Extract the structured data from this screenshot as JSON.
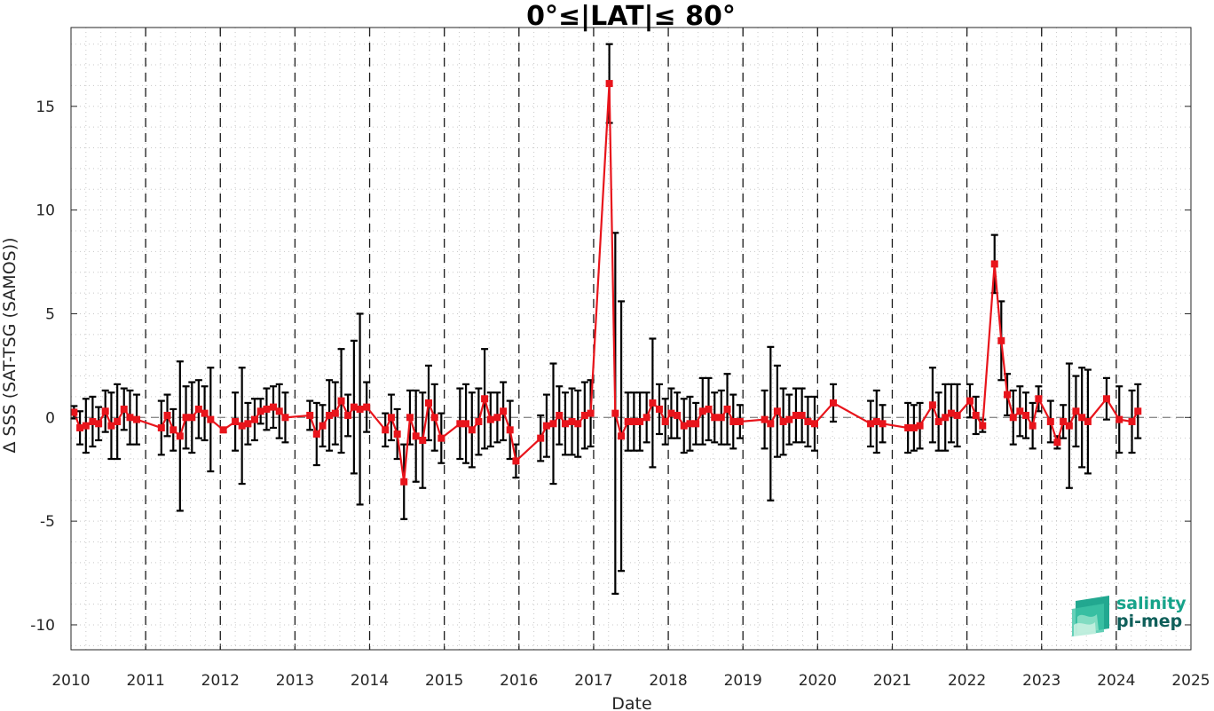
{
  "chart_data": {
    "type": "line",
    "title": "0°≤|LAT|≤ 80°",
    "xlabel": "Date",
    "ylabel": "Δ SSS (SAT-TSG (SAMOS))",
    "xlim": [
      2010,
      2025
    ],
    "ylim": [
      -11.2,
      18.8
    ],
    "x_ticks": [
      2010,
      2011,
      2012,
      2013,
      2014,
      2015,
      2016,
      2017,
      2018,
      2019,
      2020,
      2021,
      2022,
      2023,
      2024,
      2025
    ],
    "x_tick_labels": [
      "2010",
      "2011",
      "2012",
      "2013",
      "2014",
      "2015",
      "2016",
      "2017",
      "2018",
      "2019",
      "2020",
      "2021",
      "2022",
      "2023",
      "2024",
      "2025"
    ],
    "y_ticks": [
      -10,
      -5,
      0,
      5,
      10,
      15
    ],
    "y_tick_labels": [
      "-10",
      "-5",
      "0",
      "5",
      "10",
      "15"
    ],
    "zero_line": true,
    "grid": "minor-dotted",
    "year_lines": "dashed",
    "series": [
      {
        "color": "#e8141b",
        "marker": "square",
        "errorbar_color": "#000000",
        "points": [
          {
            "x": 2010.04,
            "y": 0.25,
            "err": 0.3
          },
          {
            "x": 2010.12,
            "y": -0.5,
            "err": 0.8
          },
          {
            "x": 2010.2,
            "y": -0.4,
            "err": 1.3
          },
          {
            "x": 2010.29,
            "y": -0.2,
            "err": 1.2
          },
          {
            "x": 2010.37,
            "y": -0.3,
            "err": 0.8
          },
          {
            "x": 2010.46,
            "y": 0.3,
            "err": 1.0
          },
          {
            "x": 2010.54,
            "y": -0.4,
            "err": 1.6
          },
          {
            "x": 2010.62,
            "y": -0.2,
            "err": 1.8
          },
          {
            "x": 2010.71,
            "y": 0.4,
            "err": 1.0
          },
          {
            "x": 2010.79,
            "y": 0.0,
            "err": 1.3
          },
          {
            "x": 2010.88,
            "y": -0.1,
            "err": 1.2
          },
          {
            "x": 2011.21,
            "y": -0.5,
            "err": 1.3
          },
          {
            "x": 2011.29,
            "y": 0.1,
            "err": 1.0
          },
          {
            "x": 2011.37,
            "y": -0.6,
            "err": 1.0
          },
          {
            "x": 2011.46,
            "y": -0.9,
            "err": 3.6
          },
          {
            "x": 2011.54,
            "y": 0.0,
            "err": 1.5
          },
          {
            "x": 2011.62,
            "y": 0.0,
            "err": 1.7
          },
          {
            "x": 2011.71,
            "y": 0.4,
            "err": 1.4
          },
          {
            "x": 2011.79,
            "y": 0.2,
            "err": 1.3
          },
          {
            "x": 2011.87,
            "y": -0.1,
            "err": 2.5
          },
          {
            "x": 2012.04,
            "y": -0.6,
            "err": 0.1
          },
          {
            "x": 2012.2,
            "y": -0.2,
            "err": 1.4
          },
          {
            "x": 2012.29,
            "y": -0.4,
            "err": 2.8
          },
          {
            "x": 2012.37,
            "y": -0.3,
            "err": 1.0
          },
          {
            "x": 2012.46,
            "y": -0.1,
            "err": 1.0
          },
          {
            "x": 2012.54,
            "y": 0.3,
            "err": 0.6
          },
          {
            "x": 2012.62,
            "y": 0.4,
            "err": 1.0
          },
          {
            "x": 2012.71,
            "y": 0.5,
            "err": 1.0
          },
          {
            "x": 2012.79,
            "y": 0.3,
            "err": 1.3
          },
          {
            "x": 2012.87,
            "y": 0.0,
            "err": 1.2
          },
          {
            "x": 2013.2,
            "y": 0.1,
            "err": 0.7
          },
          {
            "x": 2013.29,
            "y": -0.8,
            "err": 1.5
          },
          {
            "x": 2013.37,
            "y": -0.4,
            "err": 1.0
          },
          {
            "x": 2013.46,
            "y": 0.1,
            "err": 1.7
          },
          {
            "x": 2013.54,
            "y": 0.2,
            "err": 1.5
          },
          {
            "x": 2013.62,
            "y": 0.8,
            "err": 2.5
          },
          {
            "x": 2013.71,
            "y": 0.1,
            "err": 1.0
          },
          {
            "x": 2013.79,
            "y": 0.5,
            "err": 3.2
          },
          {
            "x": 2013.87,
            "y": 0.4,
            "err": 4.6
          },
          {
            "x": 2013.96,
            "y": 0.5,
            "err": 1.2
          },
          {
            "x": 2014.21,
            "y": -0.6,
            "err": 0.8
          },
          {
            "x": 2014.29,
            "y": 0.0,
            "err": 1.1
          },
          {
            "x": 2014.37,
            "y": -0.8,
            "err": 1.2
          },
          {
            "x": 2014.46,
            "y": -3.1,
            "err": 1.8
          },
          {
            "x": 2014.54,
            "y": 0.0,
            "err": 1.3
          },
          {
            "x": 2014.62,
            "y": -0.9,
            "err": 2.2
          },
          {
            "x": 2014.71,
            "y": -1.1,
            "err": 2.3
          },
          {
            "x": 2014.79,
            "y": 0.7,
            "err": 1.8
          },
          {
            "x": 2014.87,
            "y": 0.0,
            "err": 1.6
          },
          {
            "x": 2014.96,
            "y": -1.0,
            "err": 1.2
          },
          {
            "x": 2015.21,
            "y": -0.3,
            "err": 1.7
          },
          {
            "x": 2015.29,
            "y": -0.3,
            "err": 1.9
          },
          {
            "x": 2015.37,
            "y": -0.6,
            "err": 1.8
          },
          {
            "x": 2015.46,
            "y": -0.2,
            "err": 1.6
          },
          {
            "x": 2015.54,
            "y": 0.9,
            "err": 2.4
          },
          {
            "x": 2015.62,
            "y": -0.1,
            "err": 1.3
          },
          {
            "x": 2015.71,
            "y": 0.0,
            "err": 1.2
          },
          {
            "x": 2015.79,
            "y": 0.3,
            "err": 1.4
          },
          {
            "x": 2015.88,
            "y": -0.6,
            "err": 1.4
          },
          {
            "x": 2015.96,
            "y": -2.1,
            "err": 0.8
          },
          {
            "x": 2016.29,
            "y": -1.0,
            "err": 1.1
          },
          {
            "x": 2016.37,
            "y": -0.4,
            "err": 1.5
          },
          {
            "x": 2016.46,
            "y": -0.3,
            "err": 2.9
          },
          {
            "x": 2016.54,
            "y": 0.1,
            "err": 1.4
          },
          {
            "x": 2016.62,
            "y": -0.3,
            "err": 1.5
          },
          {
            "x": 2016.71,
            "y": -0.2,
            "err": 1.6
          },
          {
            "x": 2016.79,
            "y": -0.3,
            "err": 1.6
          },
          {
            "x": 2016.88,
            "y": 0.1,
            "err": 1.6
          },
          {
            "x": 2016.96,
            "y": 0.2,
            "err": 1.6
          },
          {
            "x": 2017.21,
            "y": 16.1,
            "err": 1.9
          },
          {
            "x": 2017.29,
            "y": 0.2,
            "err": 8.7
          },
          {
            "x": 2017.37,
            "y": -0.9,
            "err": 6.5
          },
          {
            "x": 2017.46,
            "y": -0.2,
            "err": 1.4
          },
          {
            "x": 2017.54,
            "y": -0.2,
            "err": 1.4
          },
          {
            "x": 2017.62,
            "y": -0.2,
            "err": 1.4
          },
          {
            "x": 2017.71,
            "y": 0.0,
            "err": 1.2
          },
          {
            "x": 2017.79,
            "y": 0.7,
            "err": 3.1
          },
          {
            "x": 2017.88,
            "y": 0.4,
            "err": 1.2
          },
          {
            "x": 2017.96,
            "y": -0.2,
            "err": 1.1
          },
          {
            "x": 2018.04,
            "y": 0.2,
            "err": 1.2
          },
          {
            "x": 2018.12,
            "y": 0.1,
            "err": 1.1
          },
          {
            "x": 2018.21,
            "y": -0.4,
            "err": 1.3
          },
          {
            "x": 2018.29,
            "y": -0.3,
            "err": 1.3
          },
          {
            "x": 2018.37,
            "y": -0.3,
            "err": 1.0
          },
          {
            "x": 2018.46,
            "y": 0.3,
            "err": 1.6
          },
          {
            "x": 2018.54,
            "y": 0.4,
            "err": 1.5
          },
          {
            "x": 2018.62,
            "y": 0.0,
            "err": 1.2
          },
          {
            "x": 2018.71,
            "y": 0.0,
            "err": 1.3
          },
          {
            "x": 2018.79,
            "y": 0.4,
            "err": 1.7
          },
          {
            "x": 2018.87,
            "y": -0.2,
            "err": 1.3
          },
          {
            "x": 2018.96,
            "y": -0.2,
            "err": 0.8
          },
          {
            "x": 2019.29,
            "y": -0.1,
            "err": 1.4
          },
          {
            "x": 2019.37,
            "y": -0.3,
            "err": 3.7
          },
          {
            "x": 2019.46,
            "y": 0.3,
            "err": 2.2
          },
          {
            "x": 2019.54,
            "y": -0.2,
            "err": 1.6
          },
          {
            "x": 2019.62,
            "y": -0.1,
            "err": 1.2
          },
          {
            "x": 2019.71,
            "y": 0.1,
            "err": 1.3
          },
          {
            "x": 2019.79,
            "y": 0.1,
            "err": 1.3
          },
          {
            "x": 2019.87,
            "y": -0.2,
            "err": 1.2
          },
          {
            "x": 2019.96,
            "y": -0.3,
            "err": 1.3
          },
          {
            "x": 2020.21,
            "y": 0.7,
            "err": 0.9
          },
          {
            "x": 2020.71,
            "y": -0.3,
            "err": 1.1
          },
          {
            "x": 2020.79,
            "y": -0.2,
            "err": 1.5
          },
          {
            "x": 2020.87,
            "y": -0.3,
            "err": 0.9
          },
          {
            "x": 2021.21,
            "y": -0.5,
            "err": 1.2
          },
          {
            "x": 2021.29,
            "y": -0.5,
            "err": 1.1
          },
          {
            "x": 2021.37,
            "y": -0.4,
            "err": 1.1
          },
          {
            "x": 2021.54,
            "y": 0.6,
            "err": 1.8
          },
          {
            "x": 2021.62,
            "y": -0.2,
            "err": 1.4
          },
          {
            "x": 2021.71,
            "y": 0.0,
            "err": 1.6
          },
          {
            "x": 2021.79,
            "y": 0.2,
            "err": 1.4
          },
          {
            "x": 2021.87,
            "y": 0.1,
            "err": 1.5
          },
          {
            "x": 2022.04,
            "y": 0.8,
            "err": 0.8
          },
          {
            "x": 2022.12,
            "y": 0.1,
            "err": 0.9
          },
          {
            "x": 2022.21,
            "y": -0.4,
            "err": 0.3
          },
          {
            "x": 2022.37,
            "y": 7.4,
            "err": 1.4
          },
          {
            "x": 2022.46,
            "y": 3.7,
            "err": 1.9
          },
          {
            "x": 2022.54,
            "y": 1.1,
            "err": 1.0
          },
          {
            "x": 2022.62,
            "y": 0.0,
            "err": 1.3
          },
          {
            "x": 2022.71,
            "y": 0.3,
            "err": 1.2
          },
          {
            "x": 2022.79,
            "y": 0.1,
            "err": 1.1
          },
          {
            "x": 2022.88,
            "y": -0.4,
            "err": 1.1
          },
          {
            "x": 2022.96,
            "y": 0.9,
            "err": 0.6
          },
          {
            "x": 2023.12,
            "y": -0.2,
            "err": 1.0
          },
          {
            "x": 2023.21,
            "y": -1.2,
            "err": 0.3
          },
          {
            "x": 2023.29,
            "y": -0.2,
            "err": 0.8
          },
          {
            "x": 2023.37,
            "y": -0.4,
            "err": 3.0
          },
          {
            "x": 2023.46,
            "y": 0.3,
            "err": 1.7
          },
          {
            "x": 2023.54,
            "y": 0.0,
            "err": 2.4
          },
          {
            "x": 2023.62,
            "y": -0.2,
            "err": 2.5
          },
          {
            "x": 2023.87,
            "y": 0.9,
            "err": 1.0
          },
          {
            "x": 2024.04,
            "y": -0.1,
            "err": 1.6
          },
          {
            "x": 2024.21,
            "y": -0.2,
            "err": 1.5
          },
          {
            "x": 2024.29,
            "y": 0.3,
            "err": 1.3
          }
        ]
      }
    ]
  },
  "logo": {
    "line1": "salinity",
    "line2": "pi-mep",
    "color_primary": "#16a38a",
    "color_secondary": "#0f5f5a"
  }
}
